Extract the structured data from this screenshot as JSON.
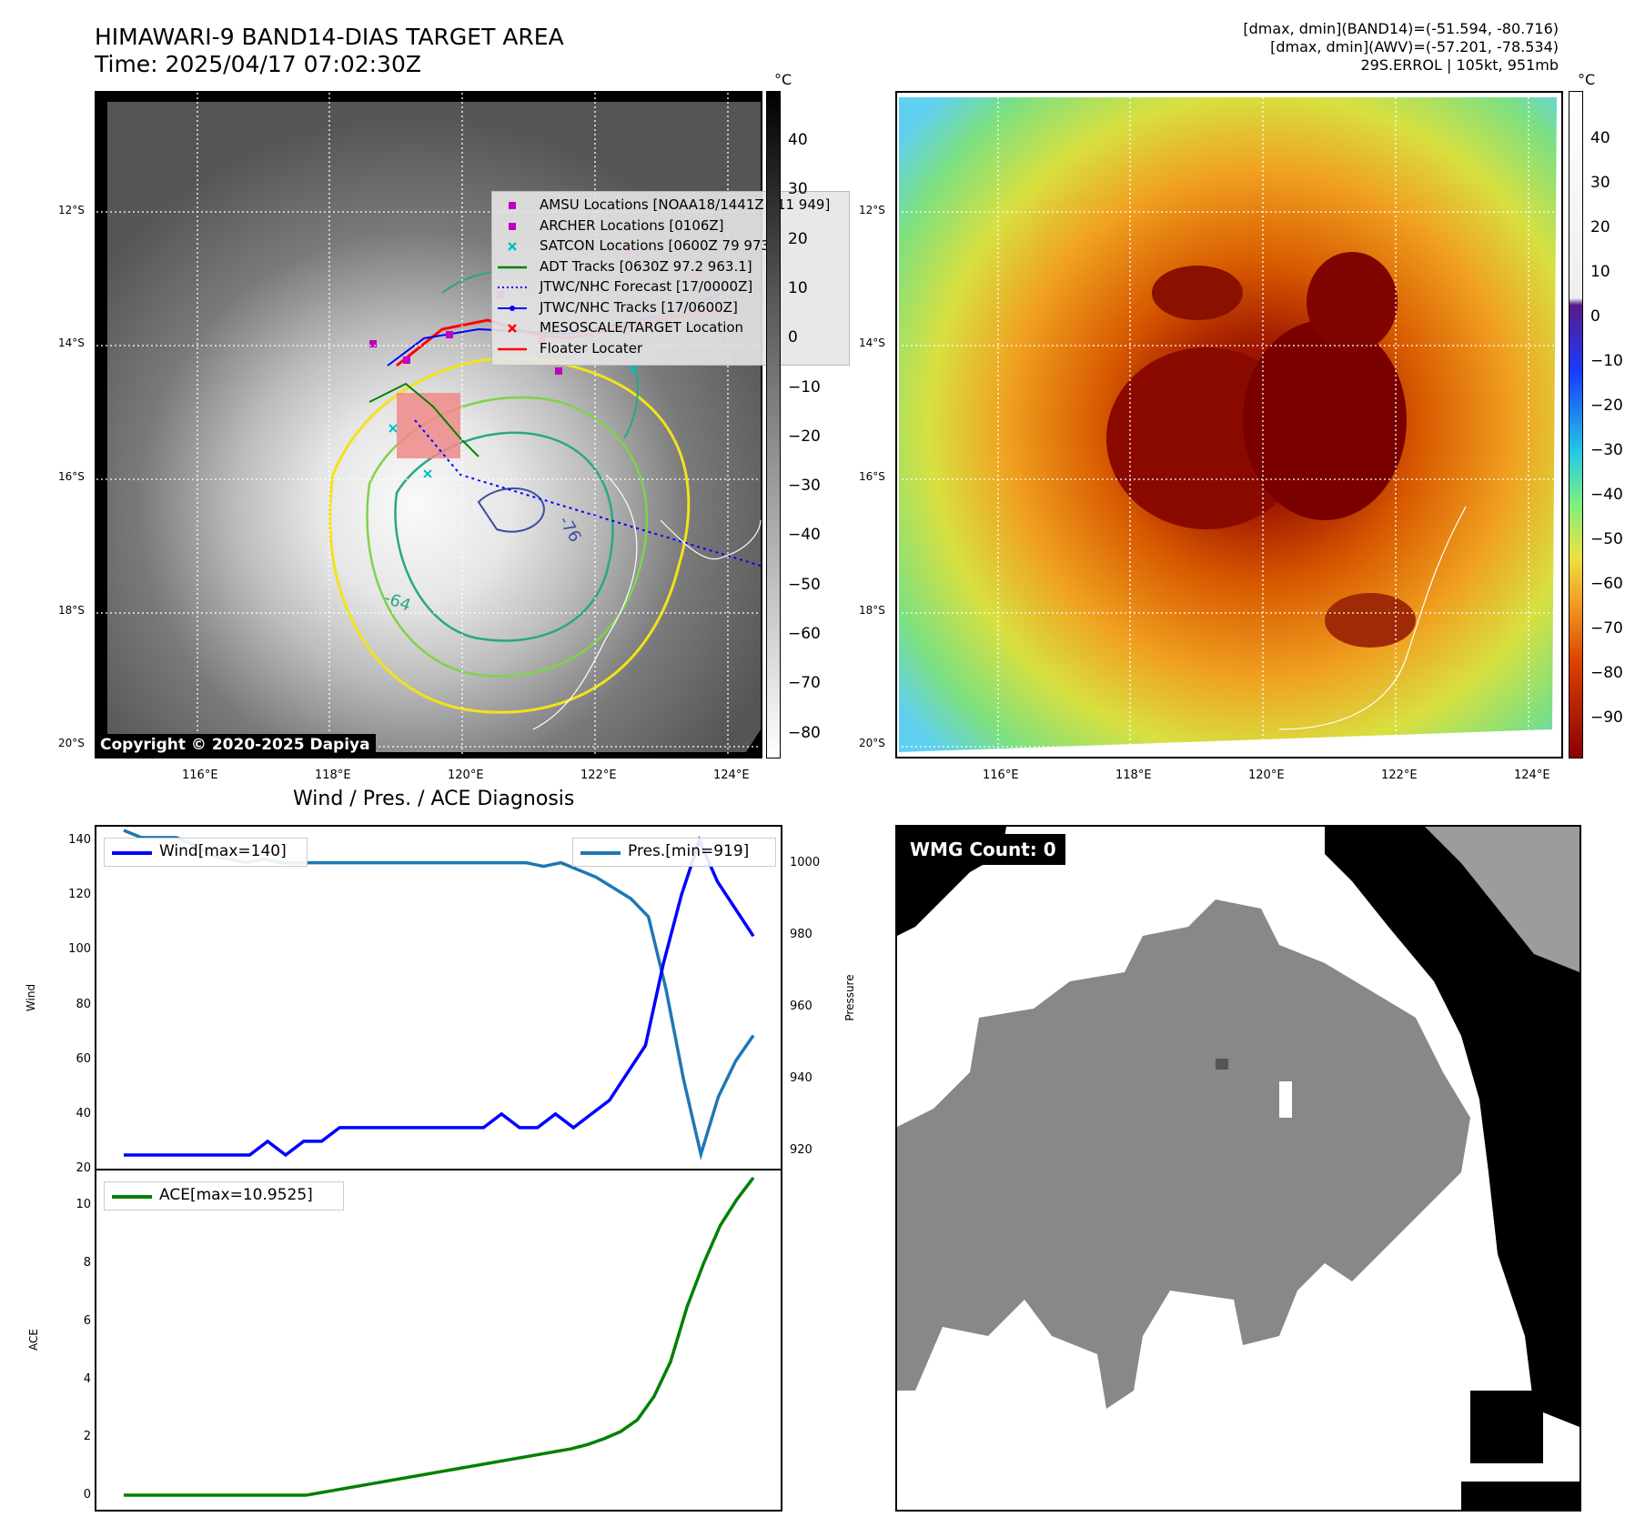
{
  "header": {
    "title_line1": "HIMAWARI-9 BAND14-DIAS TARGET AREA",
    "title_line2": "Time: 2025/04/17 07:02:30Z",
    "info_line1": "[dmax, dmin](BAND14)=(-51.594, -80.716)",
    "info_line2": "[dmax, dmin](AWV)=(-57.201, -78.534)",
    "info_line3": "29S.ERROL | 105kt, 951mb",
    "unit_left": "°C",
    "unit_right": "°C"
  },
  "map": {
    "lat_labels": [
      "12°S",
      "14°S",
      "16°S",
      "18°S",
      "20°S"
    ],
    "lon_labels": [
      "116°E",
      "118°E",
      "120°E",
      "122°E",
      "124°E"
    ],
    "copyright": "Copyright © 2020-2025 Dapiya",
    "contour_labels": [
      "-76",
      "-64"
    ],
    "left_colorbar_ticks": [
      "40",
      "30",
      "20",
      "10",
      "0",
      "−10",
      "−20",
      "−30",
      "−40",
      "−50",
      "−60",
      "−70",
      "−80"
    ],
    "right_colorbar_ticks": [
      "40",
      "30",
      "20",
      "10",
      "0",
      "−10",
      "−20",
      "−30",
      "−40",
      "−50",
      "−60",
      "−70",
      "−80",
      "−90"
    ],
    "legend": [
      {
        "label": "AMSU Locations [NOAA18/1441Z 111 949]",
        "color": "#c000c0",
        "marker": "square"
      },
      {
        "label": "ARCHER Locations [0106Z]",
        "color": "#c000c0",
        "marker": "square"
      },
      {
        "label": "SATCON Locations [0600Z 79 973]",
        "color": "#00c0c0",
        "marker": "x"
      },
      {
        "label": "ADT Tracks [0630Z 97.2 963.1]",
        "color": "#008000",
        "marker": "line"
      },
      {
        "label": "JTWC/NHC Forecast [17/0000Z]",
        "color": "#0000ff",
        "marker": "dotted"
      },
      {
        "label": "JTWC/NHC Tracks [17/0600Z]",
        "color": "#0000ff",
        "marker": "line-dot"
      },
      {
        "label": "MESOSCALE/TARGET Location",
        "color": "#ff0000",
        "marker": "x"
      },
      {
        "label": "Floater Locater",
        "color": "#ff0000",
        "marker": "line"
      }
    ]
  },
  "diagnosis": {
    "title": "Wind / Pres. / ACE Diagnosis",
    "wind_legend": "Wind[max=140]",
    "pres_legend": "Pres.[min=919]",
    "ace_legend": "ACE[max=10.9525]",
    "wind_axis_label": "Wind",
    "pres_axis_label": "Pressure",
    "ace_axis_label": "ACE"
  },
  "wmg": {
    "count_label": "WMG Count: 0"
  },
  "chart_data": [
    {
      "type": "line",
      "title": "Wind / Pres. / ACE Diagnosis",
      "ylabel": "Wind",
      "ylim": [
        20,
        145
      ],
      "yticks": [
        20,
        40,
        60,
        80,
        100,
        120,
        140
      ],
      "color": "#0000ff",
      "series": [
        {
          "name": "Wind[max=140]",
          "values": [
            25,
            25,
            25,
            25,
            25,
            25,
            25,
            25,
            30,
            25,
            30,
            30,
            35,
            35,
            35,
            35,
            35,
            35,
            35,
            35,
            35,
            40,
            35,
            35,
            40,
            35,
            40,
            45,
            55,
            65,
            95,
            120,
            140,
            125,
            115,
            105
          ]
        }
      ]
    },
    {
      "type": "line",
      "ylabel": "Pressure",
      "ylim": [
        915,
        1010
      ],
      "yticks": [
        920,
        940,
        960,
        980,
        1000
      ],
      "color": "#1f77b4",
      "series": [
        {
          "name": "Pres.[min=919]",
          "values": [
            1009,
            1007,
            1007,
            1007,
            1005,
            1002,
            1001,
            1000,
            1001,
            1000,
            1000,
            1000,
            1000,
            1000,
            1000,
            1000,
            1000,
            1000,
            1000,
            1000,
            1000,
            1000,
            1000,
            1000,
            999,
            1000,
            998,
            996,
            993,
            990,
            985,
            965,
            940,
            919,
            935,
            945,
            952
          ]
        }
      ]
    },
    {
      "type": "line",
      "ylabel": "ACE",
      "ylim": [
        -0.5,
        11.2
      ],
      "yticks": [
        0,
        2,
        4,
        6,
        8,
        10
      ],
      "color": "#008000",
      "series": [
        {
          "name": "ACE[max=10.9525]",
          "values": [
            0,
            0,
            0,
            0,
            0,
            0,
            0,
            0,
            0,
            0,
            0,
            0,
            0.1,
            0.2,
            0.3,
            0.4,
            0.5,
            0.6,
            0.7,
            0.8,
            0.9,
            1.0,
            1.1,
            1.2,
            1.3,
            1.4,
            1.5,
            1.6,
            1.75,
            1.95,
            2.2,
            2.6,
            3.4,
            4.6,
            6.5,
            8.0,
            9.3,
            10.2,
            10.95
          ]
        }
      ]
    }
  ]
}
